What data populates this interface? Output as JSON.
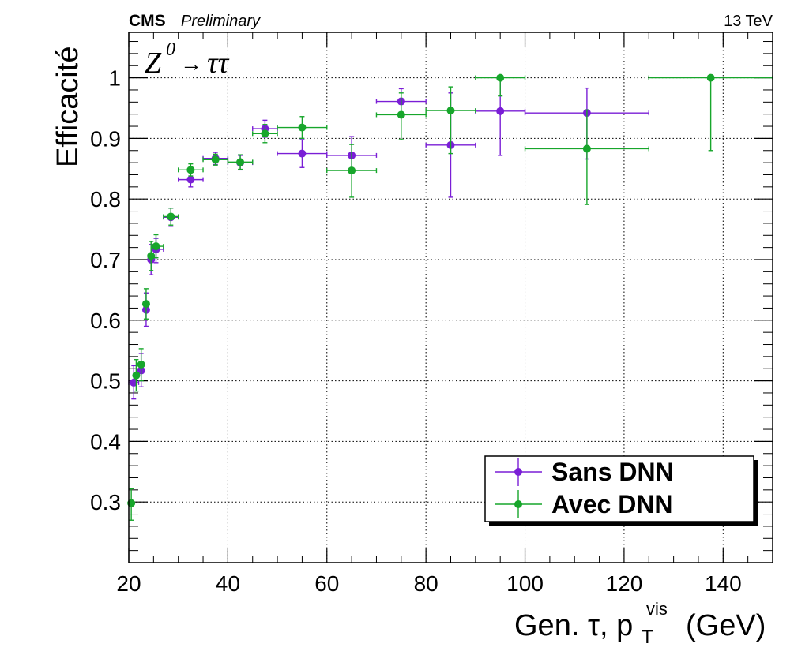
{
  "header": {
    "experiment": "CMS",
    "status": "Preliminary",
    "energy": "13 TeV"
  },
  "annotation": {
    "process_base": "Z",
    "process_sup": "0",
    "process_arrow": "→",
    "process_final": "ττ"
  },
  "chart_data": {
    "type": "scatter",
    "ylabel": "Efficacité",
    "xlabel_main": "Gen. τ, p",
    "xlabel_sub": "T",
    "xlabel_sup": "vis",
    "xlabel_unit": "(GeV)",
    "xlim": [
      20,
      150
    ],
    "ylim": [
      0.2,
      1.075
    ],
    "xticks": [
      20,
      40,
      60,
      80,
      100,
      120,
      140
    ],
    "yticks": [
      0.3,
      0.4,
      0.5,
      0.6,
      0.7,
      0.8,
      0.9,
      1
    ],
    "ytick_labels": [
      "0.3",
      "0.4",
      "0.5",
      "0.6",
      "0.7",
      "0.8",
      "0.9",
      "1"
    ],
    "grid": true,
    "legend_position": "bottom-right",
    "series": [
      {
        "name": "Sans DNN",
        "color": "#7a1ed6",
        "points": [
          {
            "x": 21,
            "xlo": 20,
            "xhi": 22,
            "y": 0.497,
            "ylo": 0.47,
            "yhi": 0.525
          },
          {
            "x": 22.5,
            "xlo": 22,
            "xhi": 23,
            "y": 0.517,
            "ylo": 0.49,
            "yhi": 0.545
          },
          {
            "x": 23.5,
            "xlo": 23,
            "xhi": 24,
            "y": 0.617,
            "ylo": 0.59,
            "yhi": 0.645
          },
          {
            "x": 24.5,
            "xlo": 24,
            "xhi": 25,
            "y": 0.7,
            "ylo": 0.675,
            "yhi": 0.725
          },
          {
            "x": 25.5,
            "xlo": 25,
            "xhi": 27,
            "y": 0.717,
            "ylo": 0.695,
            "yhi": 0.735
          },
          {
            "x": 28.5,
            "xlo": 27,
            "xhi": 30,
            "y": 0.77,
            "ylo": 0.755,
            "yhi": 0.785
          },
          {
            "x": 32.5,
            "xlo": 30,
            "xhi": 35,
            "y": 0.832,
            "ylo": 0.82,
            "yhi": 0.844
          },
          {
            "x": 37.5,
            "xlo": 35,
            "xhi": 40,
            "y": 0.867,
            "ylo": 0.857,
            "yhi": 0.877
          },
          {
            "x": 42.5,
            "xlo": 40,
            "xhi": 45,
            "y": 0.86,
            "ylo": 0.848,
            "yhi": 0.872
          },
          {
            "x": 47.5,
            "xlo": 45,
            "xhi": 50,
            "y": 0.916,
            "ylo": 0.902,
            "yhi": 0.93
          },
          {
            "x": 55,
            "xlo": 50,
            "xhi": 60,
            "y": 0.875,
            "ylo": 0.852,
            "yhi": 0.898
          },
          {
            "x": 65,
            "xlo": 60,
            "xhi": 70,
            "y": 0.872,
            "ylo": 0.843,
            "yhi": 0.903
          },
          {
            "x": 75,
            "xlo": 70,
            "xhi": 80,
            "y": 0.961,
            "ylo": 0.94,
            "yhi": 0.982
          },
          {
            "x": 85,
            "xlo": 80,
            "xhi": 90,
            "y": 0.889,
            "ylo": 0.803,
            "yhi": 0.975
          },
          {
            "x": 95,
            "xlo": 90,
            "xhi": 100,
            "y": 0.945,
            "ylo": 0.872,
            "yhi": 1.0
          },
          {
            "x": 112.5,
            "xlo": 100,
            "xhi": 125,
            "y": 0.942,
            "ylo": 0.866,
            "yhi": 0.983
          }
        ]
      },
      {
        "name": "Avec DNN",
        "color": "#17a62b",
        "points": [
          {
            "x": 20.5,
            "xlo": 20,
            "xhi": 21,
            "y": 0.298,
            "ylo": 0.27,
            "yhi": 0.322
          },
          {
            "x": 21.5,
            "xlo": 21,
            "xhi": 22,
            "y": 0.509,
            "ylo": 0.483,
            "yhi": 0.535
          },
          {
            "x": 22.5,
            "xlo": 22,
            "xhi": 23,
            "y": 0.527,
            "ylo": 0.5,
            "yhi": 0.553
          },
          {
            "x": 23.5,
            "xlo": 23,
            "xhi": 24,
            "y": 0.627,
            "ylo": 0.602,
            "yhi": 0.652
          },
          {
            "x": 24.5,
            "xlo": 24,
            "xhi": 25,
            "y": 0.706,
            "ylo": 0.682,
            "yhi": 0.73
          },
          {
            "x": 25.5,
            "xlo": 25,
            "xhi": 27,
            "y": 0.722,
            "ylo": 0.703,
            "yhi": 0.741
          },
          {
            "x": 28.5,
            "xlo": 27,
            "xhi": 30,
            "y": 0.771,
            "ylo": 0.757,
            "yhi": 0.785
          },
          {
            "x": 32.5,
            "xlo": 30,
            "xhi": 35,
            "y": 0.848,
            "ylo": 0.838,
            "yhi": 0.858
          },
          {
            "x": 37.5,
            "xlo": 35,
            "xhi": 40,
            "y": 0.865,
            "ylo": 0.856,
            "yhi": 0.874
          },
          {
            "x": 42.5,
            "xlo": 40,
            "xhi": 45,
            "y": 0.861,
            "ylo": 0.849,
            "yhi": 0.873
          },
          {
            "x": 47.5,
            "xlo": 45,
            "xhi": 50,
            "y": 0.908,
            "ylo": 0.893,
            "yhi": 0.923
          },
          {
            "x": 55,
            "xlo": 50,
            "xhi": 60,
            "y": 0.918,
            "ylo": 0.9,
            "yhi": 0.936
          },
          {
            "x": 65,
            "xlo": 60,
            "xhi": 70,
            "y": 0.847,
            "ylo": 0.803,
            "yhi": 0.89
          },
          {
            "x": 75,
            "xlo": 70,
            "xhi": 80,
            "y": 0.939,
            "ylo": 0.898,
            "yhi": 0.975
          },
          {
            "x": 85,
            "xlo": 80,
            "xhi": 90,
            "y": 0.946,
            "ylo": 0.875,
            "yhi": 0.985
          },
          {
            "x": 95,
            "xlo": 90,
            "xhi": 100,
            "y": 1.0,
            "ylo": 0.97,
            "yhi": 1.0
          },
          {
            "x": 112.5,
            "xlo": 100,
            "xhi": 125,
            "y": 0.883,
            "ylo": 0.791,
            "yhi": 0.947
          },
          {
            "x": 137.5,
            "xlo": 125,
            "xhi": 150,
            "y": 1.0,
            "ylo": 0.88,
            "yhi": 1.0
          }
        ]
      }
    ]
  }
}
